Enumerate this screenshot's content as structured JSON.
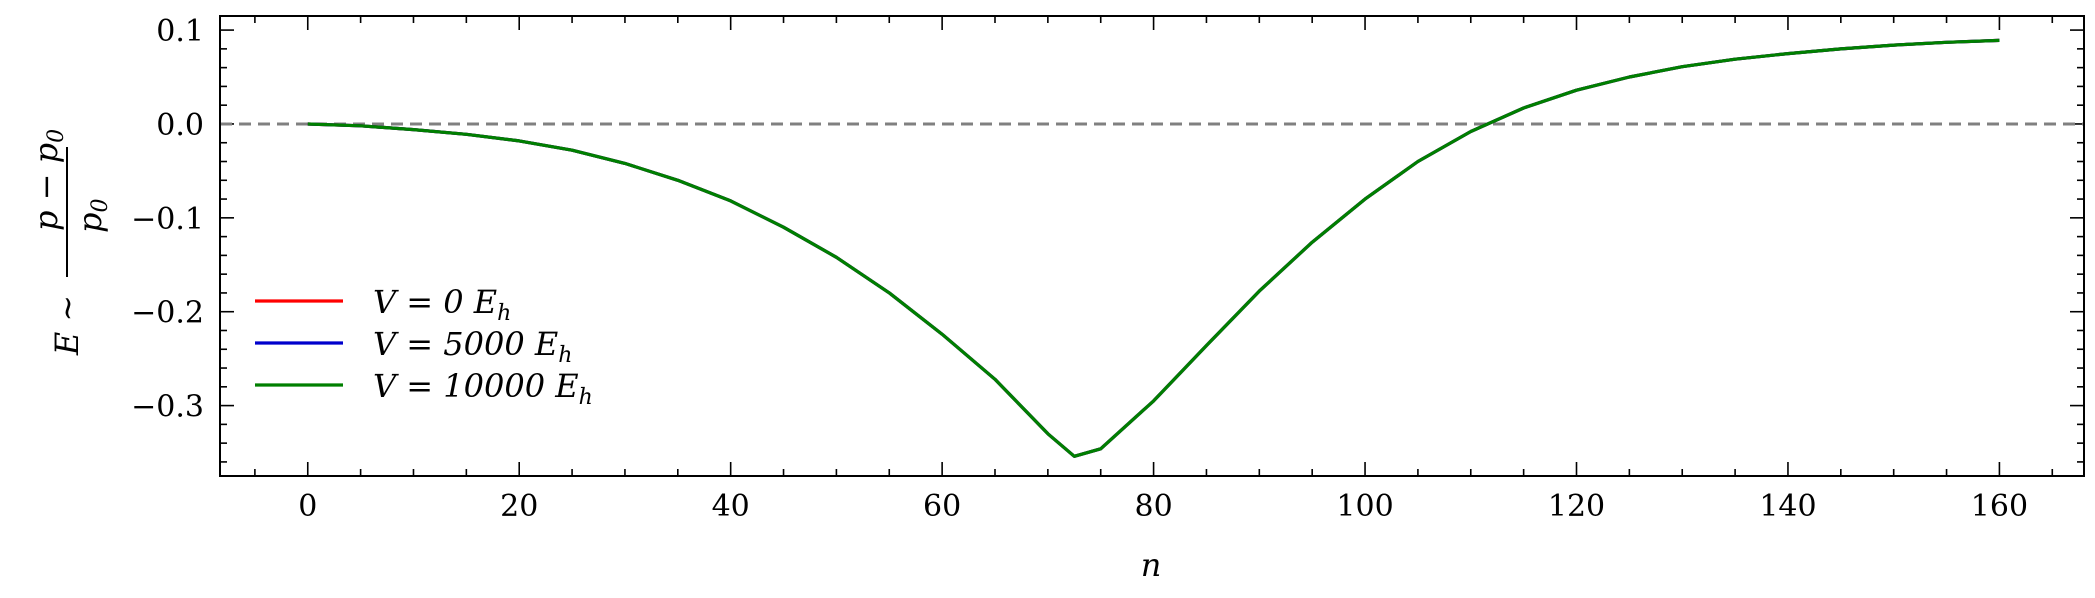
{
  "chart_data": {
    "type": "line",
    "title": "",
    "xlabel": "n",
    "ylabel": "E ~ (p − p0) / p0",
    "ylabel_parts": {
      "lhs": "E ∼",
      "numerator": "p − p",
      "denominator": "p",
      "sub": "0"
    },
    "xlim": [
      -8.3,
      168
    ],
    "ylim": [
      -0.375,
      0.115
    ],
    "xticks": [
      0,
      20,
      40,
      60,
      80,
      100,
      120,
      140,
      160
    ],
    "xtick_labels": [
      "0",
      "20",
      "40",
      "60",
      "80",
      "100",
      "120",
      "140",
      "160"
    ],
    "yticks": [
      0.1,
      0.0,
      -0.1,
      -0.2,
      -0.3
    ],
    "ytick_labels": [
      "0.1",
      "0.0",
      "−0.1",
      "−0.2",
      "−0.3"
    ],
    "grid": false,
    "reference_line": {
      "y": 0.0,
      "style": "dashed",
      "color": "#808080"
    },
    "legend_position": "lower-left",
    "x": [
      0,
      5,
      10,
      15,
      20,
      25,
      30,
      35,
      40,
      45,
      50,
      55,
      60,
      65,
      70,
      72.5,
      75,
      80,
      85,
      90,
      95,
      100,
      105,
      110,
      115,
      120,
      125,
      130,
      135,
      140,
      145,
      150,
      155,
      160
    ],
    "series": [
      {
        "name": "V = 0 E_h",
        "label_main": "V = 0 E",
        "label_sub": "h",
        "color": "#ff0000",
        "values": [
          0.0,
          -0.002,
          -0.006,
          -0.011,
          -0.018,
          -0.028,
          -0.042,
          -0.06,
          -0.082,
          -0.11,
          -0.142,
          -0.18,
          -0.224,
          -0.272,
          -0.33,
          -0.354,
          -0.346,
          -0.295,
          -0.236,
          -0.178,
          -0.126,
          -0.08,
          -0.04,
          -0.008,
          0.017,
          0.036,
          0.05,
          0.061,
          0.069,
          0.075,
          0.08,
          0.084,
          0.087,
          0.089
        ]
      },
      {
        "name": "V = 5000 E_h",
        "label_main": "V = 5000 E",
        "label_sub": "h",
        "color": "#0000cc",
        "values": [
          0.0,
          -0.002,
          -0.006,
          -0.011,
          -0.018,
          -0.028,
          -0.042,
          -0.06,
          -0.082,
          -0.11,
          -0.142,
          -0.18,
          -0.224,
          -0.272,
          -0.33,
          -0.354,
          -0.346,
          -0.295,
          -0.236,
          -0.178,
          -0.126,
          -0.08,
          -0.04,
          -0.008,
          0.017,
          0.036,
          0.05,
          0.061,
          0.069,
          0.075,
          0.08,
          0.084,
          0.087,
          0.089
        ]
      },
      {
        "name": "V = 10000 E_h",
        "label_main": "V = 10000 E",
        "label_sub": "h",
        "color": "#007f00",
        "values": [
          0.0,
          -0.002,
          -0.006,
          -0.011,
          -0.018,
          -0.028,
          -0.042,
          -0.06,
          -0.082,
          -0.11,
          -0.142,
          -0.18,
          -0.224,
          -0.272,
          -0.33,
          -0.354,
          -0.346,
          -0.295,
          -0.236,
          -0.178,
          -0.126,
          -0.08,
          -0.04,
          -0.008,
          0.017,
          0.036,
          0.05,
          0.061,
          0.069,
          0.075,
          0.08,
          0.084,
          0.087,
          0.089
        ]
      }
    ]
  }
}
